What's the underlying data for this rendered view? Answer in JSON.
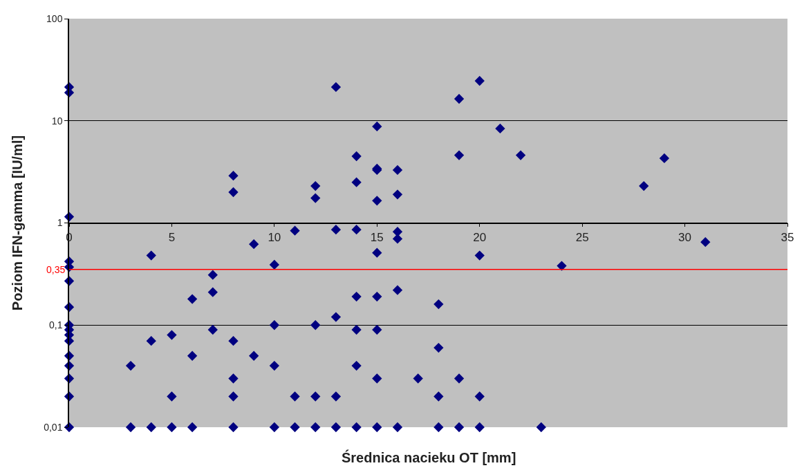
{
  "chart_data": {
    "type": "scatter",
    "xlabel": "Średnica nacieku OT [mm]",
    "ylabel": "Poziom IFN-gamma [IU/ml]",
    "x": [
      0,
      0,
      0,
      0,
      0,
      0,
      0,
      0,
      0,
      0,
      0,
      0,
      0,
      0,
      0,
      0,
      3,
      3,
      4,
      4,
      4,
      5,
      5,
      5,
      6,
      6,
      6,
      7,
      7,
      7,
      8,
      8,
      8,
      8,
      8,
      8,
      9,
      9,
      10,
      10,
      10,
      10,
      11,
      11,
      11,
      12,
      12,
      12,
      12,
      12,
      13,
      13,
      13,
      13,
      13,
      14,
      14,
      14,
      14,
      14,
      14,
      14,
      15,
      15,
      15,
      15,
      15,
      15,
      15,
      15,
      15,
      16,
      16,
      16,
      16,
      16,
      16,
      17,
      18,
      18,
      18,
      18,
      19,
      19,
      19,
      19,
      20,
      20,
      20,
      20,
      21,
      22,
      23,
      24,
      28,
      29,
      31
    ],
    "series": [
      {
        "color": "#000080",
        "values": [
          21.4,
          18.9,
          1.15,
          0.42,
          0.37,
          0.27,
          0.15,
          0.1,
          0.09,
          0.08,
          0.07,
          0.05,
          0.04,
          0.03,
          0.02,
          0.01,
          0.04,
          0.01,
          0.48,
          0.07,
          0.01,
          0.08,
          0.02,
          0.01,
          0.18,
          0.05,
          0.01,
          0.31,
          0.21,
          0.09,
          2.9,
          2.0,
          0.07,
          0.03,
          0.02,
          0.01,
          0.62,
          0.05,
          0.39,
          0.1,
          0.04,
          0.01,
          0.84,
          0.02,
          0.01,
          2.3,
          1.75,
          0.1,
          0.02,
          0.01,
          21.4,
          0.86,
          0.12,
          0.02,
          0.01,
          4.5,
          2.5,
          0.86,
          0.19,
          0.09,
          0.04,
          0.01,
          8.8,
          3.4,
          3.3,
          1.65,
          0.51,
          0.19,
          0.09,
          0.03,
          0.01,
          3.3,
          1.9,
          0.82,
          0.7,
          0.22,
          0.01,
          0.03,
          0.16,
          0.06,
          0.02,
          0.01,
          16.4,
          4.6,
          0.03,
          0.01,
          24.6,
          0.48,
          0.02,
          0.01,
          8.4,
          4.6,
          0.01,
          0.38,
          2.3,
          4.3,
          0.65
        ]
      }
    ],
    "marker": "diamond",
    "log": "y",
    "xlim": [
      0,
      35
    ],
    "xticks": [
      0,
      5,
      10,
      15,
      20,
      25,
      30,
      35
    ],
    "ylim": [
      0.01,
      100
    ],
    "yticks": [
      {
        "value": 0.01,
        "label": "0,01"
      },
      {
        "value": 0.1,
        "label": "0,1"
      },
      {
        "value": 1,
        "label": "1"
      },
      {
        "value": 10,
        "label": "10"
      },
      {
        "value": 100,
        "label": "100"
      }
    ],
    "grid": "y",
    "ref_lines": [
      {
        "axis": "y",
        "value": 0.35,
        "label": "0,35",
        "color": "#ff0000"
      }
    ]
  }
}
